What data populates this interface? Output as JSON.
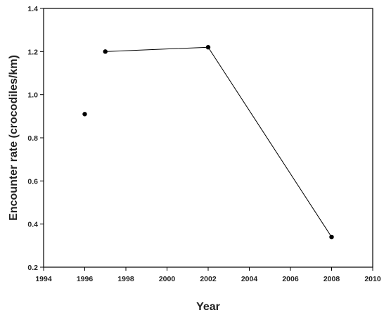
{
  "chart_data": {
    "type": "line",
    "title": "",
    "xlabel": "Year",
    "ylabel": "Encounter rate (crocodiles/km)",
    "xlim": [
      1994,
      2010
    ],
    "ylim": [
      0.2,
      1.4
    ],
    "x_ticks": [
      1994,
      1996,
      1998,
      2000,
      2002,
      2004,
      2006,
      2008,
      2010
    ],
    "y_ticks": [
      0.2,
      0.4,
      0.6,
      0.8,
      1.0,
      1.2,
      1.4
    ],
    "x_tick_labels": [
      "1994",
      "1996",
      "1998",
      "2000",
      "2002",
      "2004",
      "2006",
      "2008",
      "2010"
    ],
    "y_tick_labels": [
      "0.2",
      "0.4",
      "0.6",
      "0.8",
      "1.0",
      "1.2",
      "1.4"
    ],
    "grid": false,
    "series": [
      {
        "x": [
          1996,
          1997,
          2002,
          2008
        ],
        "y": [
          0.91,
          1.2,
          1.22,
          0.34
        ],
        "color": "#000000"
      }
    ],
    "connected_points": [
      [
        1997,
        1.2
      ],
      [
        2002,
        1.22
      ],
      [
        2008,
        0.34
      ]
    ]
  }
}
